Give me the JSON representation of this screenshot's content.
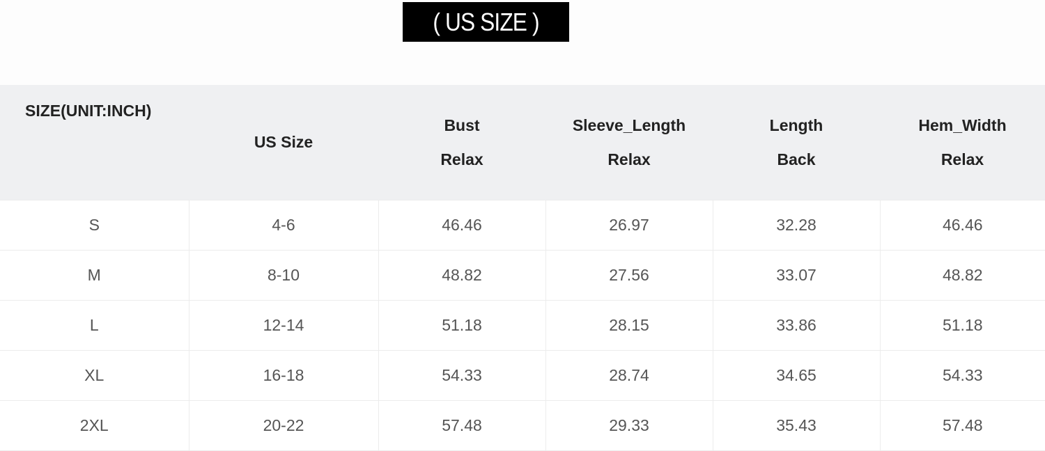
{
  "title": "( US SIZE )",
  "table": {
    "headers": {
      "size": "SIZE(UNIT:INCH)",
      "us_size": "US Size",
      "columns": [
        {
          "label": "Bust",
          "sub": "Relax"
        },
        {
          "label": "Sleeve_Length",
          "sub": "Relax"
        },
        {
          "label": "Length",
          "sub": "Back"
        },
        {
          "label": "Hem_Width",
          "sub": "Relax"
        }
      ]
    },
    "rows": [
      [
        "S",
        "4-6",
        "46.46",
        "26.97",
        "32.28",
        "46.46"
      ],
      [
        "M",
        "8-10",
        "48.82",
        "27.56",
        "33.07",
        "48.82"
      ],
      [
        "L",
        "12-14",
        "51.18",
        "28.15",
        "33.86",
        "51.18"
      ],
      [
        "XL",
        "16-18",
        "54.33",
        "28.74",
        "34.65",
        "54.33"
      ],
      [
        "2XL",
        "20-22",
        "57.48",
        "29.33",
        "35.43",
        "57.48"
      ]
    ]
  }
}
